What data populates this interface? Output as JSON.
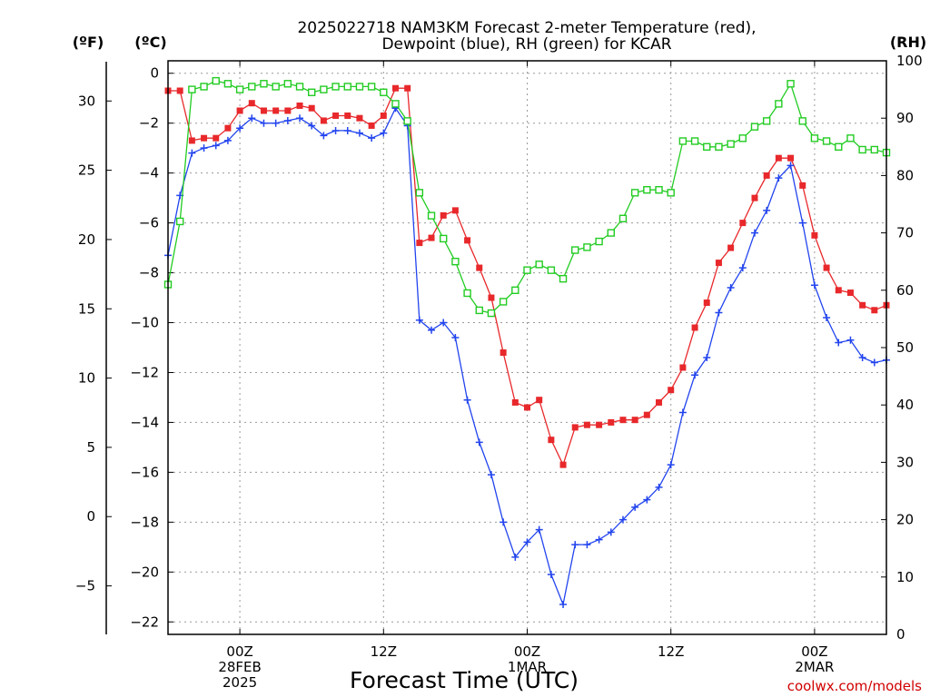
{
  "chart_data": {
    "type": "line",
    "title": [
      "2025022718 NAM3KM Forecast 2-meter Temperature (red),",
      "Dewpoint (blue), RH (green) for KCAR"
    ],
    "xlabel": "Forecast Time (UTC)",
    "credit": "coolwx.com/models",
    "axes": {
      "left_f": {
        "unit_label": "(ºF)",
        "ticks": [
          30,
          25,
          20,
          15,
          10,
          5,
          0,
          -5
        ]
      },
      "left_c": {
        "unit_label": "(ºC)",
        "ticks": [
          0,
          -2,
          -4,
          -6,
          -8,
          -10,
          -12,
          -14,
          -16,
          -18,
          -20,
          -22
        ],
        "ylim": [
          -22.5,
          0.5
        ]
      },
      "right_rh": {
        "unit_label": "(RH)",
        "ticks": [
          100,
          90,
          80,
          70,
          60,
          50,
          40,
          30,
          20,
          10,
          0
        ],
        "ylim": [
          0,
          100
        ]
      }
    },
    "x_hours": [
      18,
      19,
      20,
      21,
      22,
      23,
      24,
      25,
      26,
      27,
      28,
      29,
      30,
      31,
      32,
      33,
      34,
      35,
      36,
      37,
      38,
      39,
      40,
      41,
      42,
      43,
      44,
      45,
      46,
      47,
      48,
      49,
      50,
      51,
      52,
      53,
      54,
      55,
      56,
      57,
      58,
      59,
      60,
      61,
      62,
      63,
      64,
      65,
      66,
      67,
      68,
      69,
      70,
      71,
      72,
      73,
      74,
      75,
      76,
      77,
      78
    ],
    "x_ticks": [
      {
        "hour": 24,
        "lines": [
          "00Z",
          "28FEB",
          "2025"
        ]
      },
      {
        "hour": 36,
        "lines": [
          "12Z"
        ]
      },
      {
        "hour": 48,
        "lines": [
          "00Z",
          "1MAR"
        ]
      },
      {
        "hour": 60,
        "lines": [
          "12Z"
        ]
      },
      {
        "hour": 72,
        "lines": [
          "00Z",
          "2MAR"
        ]
      }
    ],
    "xlim": [
      18,
      78
    ],
    "series": [
      {
        "name": "Temperature",
        "color": "#e8282b",
        "marker": "filled-square",
        "axis": "left_c",
        "values": [
          -0.7,
          -0.7,
          -2.7,
          -2.6,
          -2.6,
          -2.2,
          -1.5,
          -1.2,
          -1.5,
          -1.5,
          -1.5,
          -1.3,
          -1.4,
          -1.9,
          -1.7,
          -1.7,
          -1.8,
          -2.1,
          -1.7,
          -0.6,
          -0.6,
          -6.8,
          -6.6,
          -5.7,
          -5.5,
          -6.7,
          -7.8,
          -9.0,
          -11.2,
          -13.2,
          -13.4,
          -13.1,
          -14.7,
          -15.7,
          -14.2,
          -14.1,
          -14.1,
          -14.0,
          -13.9,
          -13.9,
          -13.7,
          -13.2,
          -12.7,
          -11.8,
          -10.2,
          -9.2,
          -7.6,
          -7.0,
          -6.0,
          -5.0,
          -4.1,
          -3.4,
          -3.4,
          -4.5,
          -6.5,
          -7.8,
          -8.7,
          -8.8,
          -9.3,
          -9.5,
          -9.3
        ]
      },
      {
        "name": "Dewpoint",
        "color": "#2244ee",
        "marker": "plus",
        "axis": "left_c",
        "values": [
          -7.3,
          -4.9,
          -3.2,
          -3.0,
          -2.9,
          -2.7,
          -2.2,
          -1.8,
          -2.0,
          -2.0,
          -1.9,
          -1.8,
          -2.1,
          -2.5,
          -2.3,
          -2.3,
          -2.4,
          -2.6,
          -2.4,
          -1.4,
          -2.1,
          -9.9,
          -10.3,
          -10.0,
          -10.6,
          -13.1,
          -14.8,
          -16.1,
          -18.0,
          -19.4,
          -18.8,
          -18.3,
          -20.1,
          -21.3,
          -18.9,
          -18.9,
          -18.7,
          -18.4,
          -17.9,
          -17.4,
          -17.1,
          -16.6,
          -15.7,
          -13.6,
          -12.1,
          -11.4,
          -9.6,
          -8.6,
          -7.8,
          -6.4,
          -5.5,
          -4.2,
          -3.7,
          -6.0,
          -8.5,
          -9.8,
          -10.8,
          -10.7,
          -11.4,
          -11.6,
          -11.5
        ]
      },
      {
        "name": "RH",
        "color": "#22cc22",
        "marker": "open-square",
        "axis": "right_rh",
        "values": [
          61,
          72,
          95,
          95.5,
          96.5,
          96,
          95,
          95.5,
          96,
          95.5,
          96,
          95.5,
          94.5,
          95,
          95.5,
          95.5,
          95.5,
          95.5,
          94.5,
          92.5,
          89.5,
          77,
          73,
          69,
          65,
          59.5,
          56.5,
          56,
          58,
          60,
          63.5,
          64.5,
          63.5,
          62,
          67,
          67.5,
          68.5,
          70,
          72.5,
          77,
          77.5,
          77.5,
          77,
          86,
          86,
          85,
          85,
          85.5,
          86.5,
          88.5,
          89.5,
          92.5,
          96,
          89.5,
          86.5,
          86,
          85,
          86.5,
          84.5,
          84.5,
          84
        ]
      }
    ]
  }
}
